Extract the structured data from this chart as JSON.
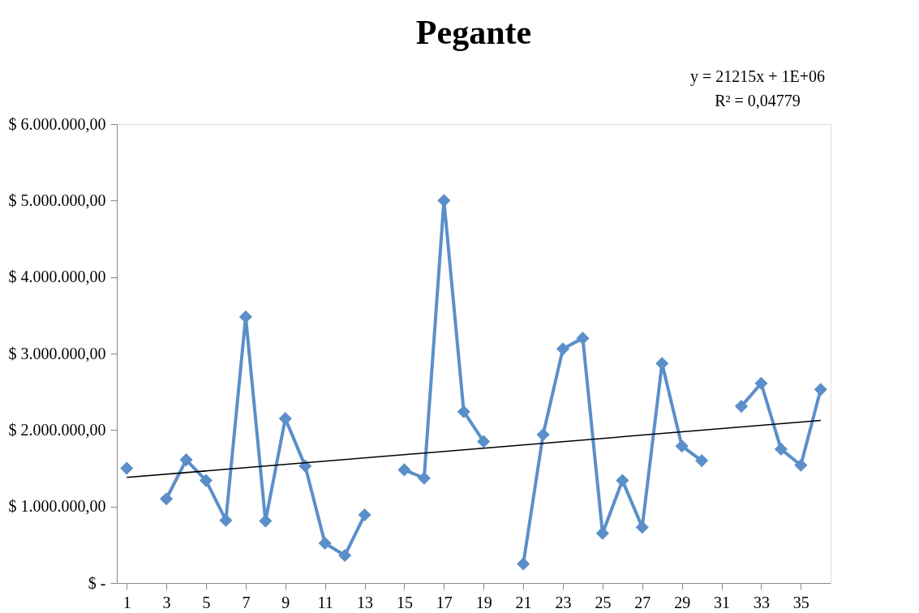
{
  "chart_data": {
    "type": "line",
    "title": "Pegante",
    "x": [
      1,
      2,
      3,
      4,
      5,
      6,
      7,
      8,
      9,
      10,
      11,
      12,
      13,
      14,
      15,
      16,
      17,
      18,
      19,
      20,
      21,
      22,
      23,
      24,
      25,
      26,
      27,
      28,
      29,
      30,
      31,
      32,
      33,
      34,
      35,
      36
    ],
    "series": [
      {
        "color": "#5b8fc9",
        "marker": "diamond",
        "values": [
          1500000,
          null,
          1100000,
          1610000,
          1340000,
          820000,
          3480000,
          810000,
          2150000,
          1530000,
          520000,
          360000,
          890000,
          null,
          1480000,
          1370000,
          5000000,
          2240000,
          1850000,
          null,
          250000,
          1940000,
          3060000,
          3200000,
          650000,
          1340000,
          730000,
          2870000,
          1790000,
          1600000,
          null,
          2310000,
          2610000,
          1750000,
          1540000,
          2530000
        ]
      },
      {
        "type": "line",
        "color": "#000000",
        "marker": "none",
        "x": [
          1,
          36
        ],
        "values": [
          1380000,
          2125000
        ]
      }
    ],
    "xlim": [
      0.5,
      36.5
    ],
    "xticks": [
      1,
      3,
      5,
      7,
      9,
      11,
      13,
      15,
      17,
      19,
      21,
      23,
      25,
      27,
      29,
      31,
      33,
      35
    ],
    "ylim": [
      0,
      6000000
    ],
    "yticks": [
      {
        "value": 0,
        "label": "$ -"
      },
      {
        "value": 1000000,
        "label": "$ 1.000.000,00"
      },
      {
        "value": 2000000,
        "label": "$ 2.000.000,00"
      },
      {
        "value": 3000000,
        "label": "$ 3.000.000,00"
      },
      {
        "value": 4000000,
        "label": "$ 4.000.000,00"
      },
      {
        "value": 5000000,
        "label": "$ 5.000.000,00"
      },
      {
        "value": 6000000,
        "label": "$ 6.000.000,00"
      }
    ],
    "annotations": [
      "y = 21215x + 1E+06",
      "R² = 0,04779"
    ]
  }
}
